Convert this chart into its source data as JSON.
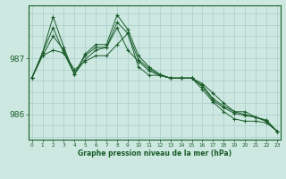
{
  "xlabel": "Graphe pression niveau de la mer (hPa)",
  "background_color": "#cce8e0",
  "grid_color": "#aacccc",
  "line_color": "#1a5c2a",
  "ylim": [
    985.55,
    987.95
  ],
  "yticks": [
    986,
    987
  ],
  "xlim": [
    -0.3,
    23.3
  ],
  "series": [
    [
      986.65,
      987.05,
      987.15,
      987.1,
      986.8,
      986.95,
      987.05,
      987.05,
      987.25,
      987.45,
      986.85,
      986.7,
      986.7,
      986.65,
      986.65,
      986.65,
      986.55,
      986.38,
      986.2,
      986.05,
      986.05,
      985.95,
      985.9,
      985.7
    ],
    [
      986.65,
      987.1,
      987.55,
      987.1,
      986.72,
      986.98,
      987.15,
      987.2,
      987.55,
      987.15,
      986.95,
      986.78,
      986.7,
      986.65,
      986.65,
      986.65,
      986.45,
      986.22,
      986.05,
      985.92,
      985.88,
      985.88,
      985.85,
      985.7
    ],
    [
      986.65,
      987.05,
      987.4,
      987.15,
      986.72,
      987.05,
      987.2,
      987.2,
      987.65,
      987.45,
      986.98,
      986.82,
      986.7,
      986.65,
      986.65,
      986.65,
      986.5,
      986.25,
      986.12,
      986.02,
      985.98,
      985.95,
      985.88,
      985.7
    ],
    [
      986.65,
      987.1,
      987.75,
      987.2,
      986.72,
      987.08,
      987.25,
      987.25,
      987.78,
      987.52,
      987.05,
      986.85,
      986.72,
      986.65,
      986.65,
      986.65,
      986.52,
      986.28,
      986.15,
      986.05,
      986.0,
      985.95,
      985.88,
      985.7
    ]
  ]
}
